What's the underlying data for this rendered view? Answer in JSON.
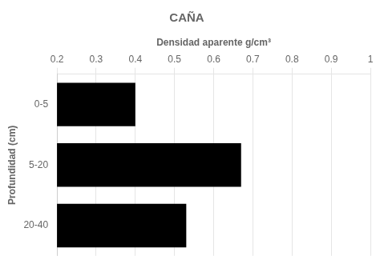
{
  "chart_data": {
    "type": "bar",
    "orientation": "horizontal",
    "title": "CAÑA",
    "xlabel": "Densidad aparente g/cm³",
    "ylabel": "Profundidad (cm)",
    "categories": [
      "0-5",
      "5-20",
      "20-40"
    ],
    "values": [
      0.4,
      0.67,
      0.53
    ],
    "color": "#000000",
    "xlim": [
      0.2,
      1.0
    ],
    "xticks": [
      0.2,
      0.3,
      0.4,
      0.5,
      0.6,
      0.7,
      0.8,
      0.9,
      1
    ],
    "grid": true
  }
}
